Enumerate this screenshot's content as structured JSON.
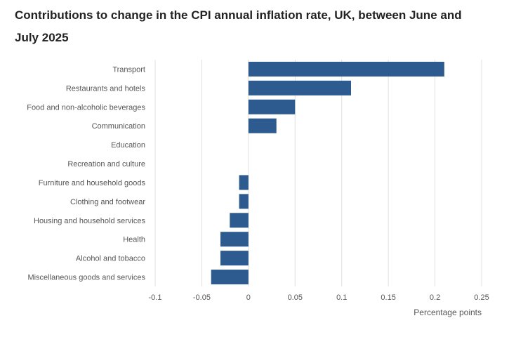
{
  "chart_data": {
    "type": "bar",
    "orientation": "horizontal",
    "title": "Contributions to change in the CPI annual inflation rate, UK, between June and July 2025",
    "xlabel": "Percentage points",
    "ylabel": "",
    "categories": [
      "Transport",
      "Restaurants and hotels",
      "Food and non-alcoholic beverages",
      "Communication",
      "Education",
      "Recreation and culture",
      "Furniture and household goods",
      "Clothing and footwear",
      "Housing and household services",
      "Health",
      "Alcohol and tobacco",
      "Miscellaneous goods and services"
    ],
    "values": [
      0.21,
      0.11,
      0.05,
      0.03,
      0,
      0,
      -0.01,
      -0.01,
      -0.02,
      -0.03,
      -0.03,
      -0.04
    ],
    "xlim": [
      -0.1,
      0.25
    ],
    "xticks": [
      -0.1,
      -0.05,
      0,
      0.05,
      0.1,
      0.15,
      0.2,
      0.25
    ],
    "xtick_labels": [
      "-0.1",
      "-0.05",
      "0",
      "0.05",
      "0.1",
      "0.15",
      "0.2",
      "0.25"
    ],
    "grid": true,
    "bar_color": "#2e5b8f",
    "grid_color": "#e0e0e0",
    "label_color": "#555555"
  }
}
